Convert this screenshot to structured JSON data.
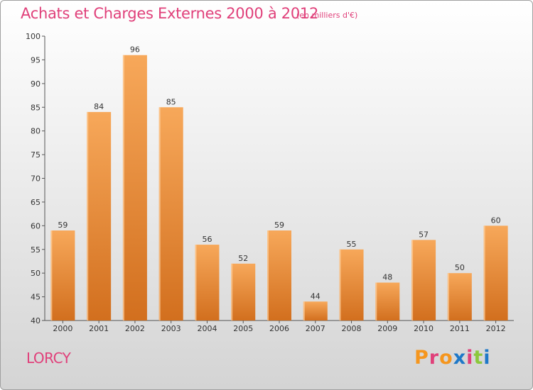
{
  "header": {
    "title": "Achats et Charges Externes 2000 à 2012",
    "subtitle": "(en milliers d'€)"
  },
  "footer": {
    "commune": "LORCY",
    "logo_text": "Proxiti"
  },
  "colors": {
    "title": "#e0407a",
    "bar_light": "#f7a85a",
    "bar_dark": "#d26f1e",
    "logo_letters": [
      "#f5961e",
      "#e0407a",
      "#f5961e",
      "#1e78c8",
      "#e0407a",
      "#8cc83c",
      "#1e78c8"
    ]
  },
  "chart_data": {
    "type": "bar",
    "title": "Achats et Charges Externes 2000 à 2012",
    "subtitle": "(en milliers d'€)",
    "xlabel": "",
    "ylabel": "",
    "categories": [
      "2000",
      "2001",
      "2002",
      "2003",
      "2004",
      "2005",
      "2006",
      "2007",
      "2008",
      "2009",
      "2010",
      "2011",
      "2012"
    ],
    "values": [
      59,
      84,
      96,
      85,
      56,
      52,
      59,
      44,
      55,
      48,
      57,
      50,
      60
    ],
    "ylim": [
      40,
      100
    ],
    "yticks": [
      40,
      45,
      50,
      55,
      60,
      65,
      70,
      75,
      80,
      85,
      90,
      95,
      100
    ],
    "grid": false,
    "legend": "none"
  }
}
